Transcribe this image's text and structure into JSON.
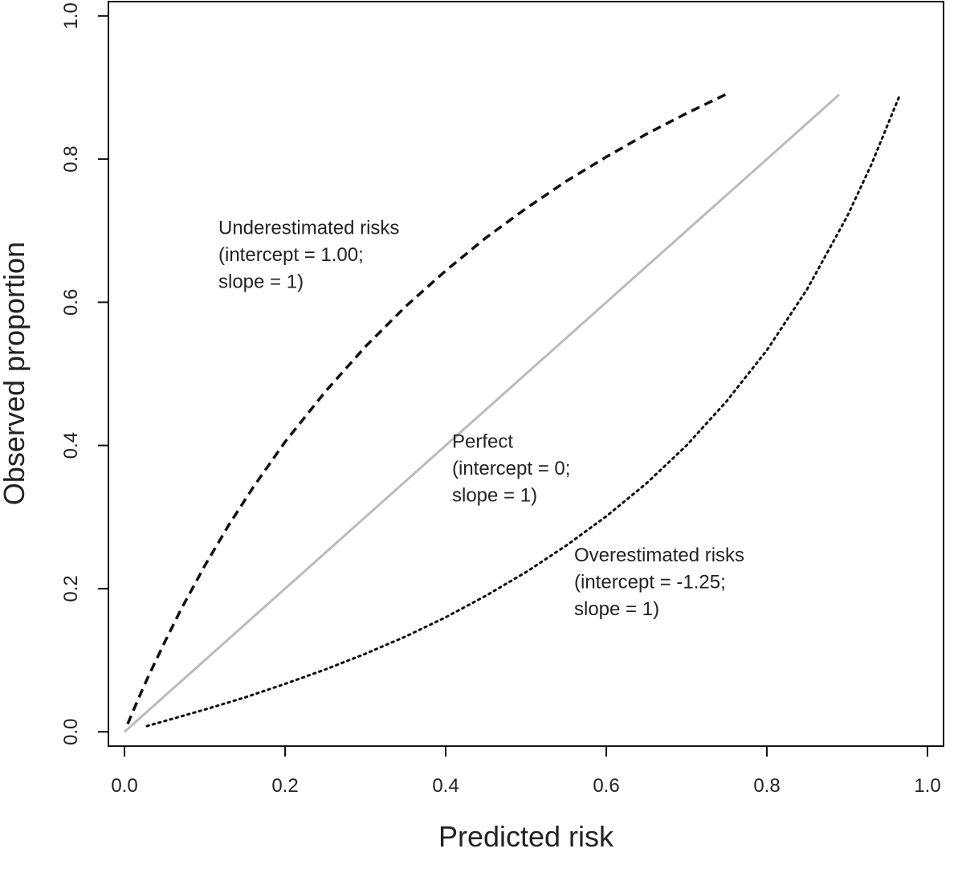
{
  "chart_data": {
    "type": "line",
    "title": "",
    "xlabel": "Predicted risk",
    "ylabel": "Observed proportion",
    "xlim": [
      -0.02,
      1.02
    ],
    "ylim": [
      -0.02,
      1.02
    ],
    "x_ticks": [
      "0.0",
      "0.2",
      "0.4",
      "0.6",
      "0.8",
      "1.0"
    ],
    "y_ticks": [
      "0.0",
      "0.2",
      "0.4",
      "0.6",
      "0.8",
      "1.0"
    ],
    "grid": false,
    "series": [
      {
        "key": "underestimated",
        "style": "dashed",
        "color": "#111111",
        "x": [
          0.004,
          0.01,
          0.02,
          0.03,
          0.05,
          0.07,
          0.1,
          0.13,
          0.16,
          0.2,
          0.25,
          0.3,
          0.35,
          0.4,
          0.45,
          0.5,
          0.55,
          0.6,
          0.65,
          0.7,
          0.75
        ],
        "y": [
          0.011,
          0.027,
          0.053,
          0.078,
          0.125,
          0.17,
          0.232,
          0.289,
          0.341,
          0.405,
          0.475,
          0.538,
          0.594,
          0.644,
          0.69,
          0.731,
          0.769,
          0.803,
          0.835,
          0.864,
          0.891
        ]
      },
      {
        "key": "perfect",
        "style": "solid",
        "color": "#bbbbbb",
        "x": [
          0.0,
          0.89
        ],
        "y": [
          0.0,
          0.89
        ]
      },
      {
        "key": "overestimated",
        "style": "dotted",
        "color": "#111111",
        "x": [
          0.028,
          0.05,
          0.1,
          0.15,
          0.2,
          0.25,
          0.3,
          0.35,
          0.4,
          0.45,
          0.5,
          0.55,
          0.6,
          0.65,
          0.7,
          0.75,
          0.8,
          0.85,
          0.9,
          0.93,
          0.965
        ],
        "y": [
          0.008,
          0.015,
          0.031,
          0.048,
          0.067,
          0.087,
          0.109,
          0.133,
          0.16,
          0.19,
          0.223,
          0.26,
          0.301,
          0.347,
          0.4,
          0.462,
          0.533,
          0.618,
          0.72,
          0.792,
          0.888
        ]
      }
    ],
    "annotations": [
      {
        "key": "under",
        "x": 0.117,
        "y": 0.695,
        "lines": [
          "Underestimated risks",
          "(intercept = 1.00;",
          "slope = 1)"
        ]
      },
      {
        "key": "perfect",
        "x": 0.408,
        "y": 0.397,
        "lines": [
          "Perfect",
          "(intercept = 0;",
          "slope = 1)"
        ]
      },
      {
        "key": "over",
        "x": 0.56,
        "y": 0.238,
        "lines": [
          "Overestimated risks",
          "(intercept = -1.25;",
          "slope = 1)"
        ]
      }
    ]
  }
}
